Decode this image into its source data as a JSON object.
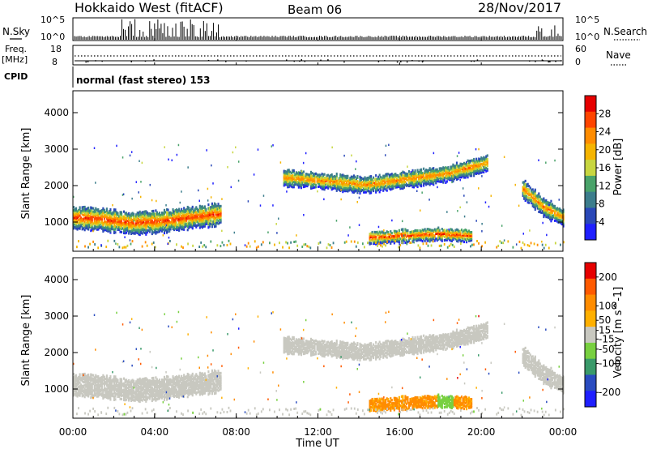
{
  "header": {
    "station": "Hokkaido West (fitACF)",
    "beam": "Beam 06",
    "date": "28/Nov/2017"
  },
  "top_panel": {
    "left_label": "N.Sky",
    "right_label": "N.Search",
    "left_ticks": [
      "10^5",
      "10^0"
    ],
    "right_ticks": [
      "10^5",
      "10^0"
    ]
  },
  "freq_panel": {
    "left_label_1": "Freq.",
    "left_label_2": "[MHz]",
    "left_ticks": [
      "18",
      "8"
    ],
    "right_label": "Nave",
    "right_ticks": [
      "60",
      "0"
    ]
  },
  "cpid": {
    "label": "CPID",
    "value": "normal (fast stereo) 153"
  },
  "colors": {
    "power_scale": [
      "#1f1fff",
      "#2a48b8",
      "#3c7d8c",
      "#4aa36a",
      "#c8d640",
      "#f5b400",
      "#ff8c00",
      "#ff4500",
      "#e60000"
    ],
    "velocity_scale": [
      "#e60000",
      "#ff5a00",
      "#ff8c00",
      "#ffb000",
      "#c8c8c0",
      "#78d040",
      "#3a9a6a",
      "#2a4cc0",
      "#1f1fff"
    ]
  },
  "chart_data": [
    {
      "type": "heatmap",
      "name": "power",
      "ylabel": "Slant Range [km]",
      "yticks": [
        1000,
        2000,
        3000,
        4000
      ],
      "ylim": [
        200,
        4600
      ],
      "colorbar_label": "Power [dB]",
      "colorbar_ticks": [
        4,
        8,
        12,
        16,
        20,
        24,
        28
      ],
      "colorbar_range": [
        0,
        32
      ],
      "echo_bands": [
        {
          "x_start": 0.0,
          "x_end": 7.2,
          "range_center": [
            1100,
            1050,
            950,
            1000,
            1100,
            1200
          ],
          "thickness": 600,
          "peak_db": 28
        },
        {
          "x_start": 10.3,
          "x_end": 20.3,
          "range_center": [
            2200,
            2100,
            2000,
            2150,
            2300,
            2600
          ],
          "thickness": 450,
          "peak_db": 24
        },
        {
          "x_start": 14.5,
          "x_end": 19.5,
          "range_center": [
            550,
            600,
            650,
            600
          ],
          "thickness": 350,
          "peak_db": 28
        },
        {
          "x_start": 22.0,
          "x_end": 24.0,
          "range_center": [
            1900,
            1400,
            1100
          ],
          "thickness": 500,
          "peak_db": 24
        }
      ]
    },
    {
      "type": "heatmap",
      "name": "velocity",
      "ylabel": "Slant Range [km]",
      "xlabel": "Time UT",
      "xticks": [
        "00:00",
        "04:00",
        "08:00",
        "12:00",
        "16:00",
        "20:00",
        "00:00"
      ],
      "xlim": [
        0,
        24
      ],
      "yticks": [
        1000,
        2000,
        3000,
        4000
      ],
      "ylim": [
        200,
        4600
      ],
      "colorbar_label": "Velocity [m s^-1]",
      "colorbar_ticks": [
        200,
        100,
        50,
        15,
        -15,
        -50,
        -100,
        -200
      ],
      "colorbar_range": [
        -250,
        250
      ]
    }
  ]
}
